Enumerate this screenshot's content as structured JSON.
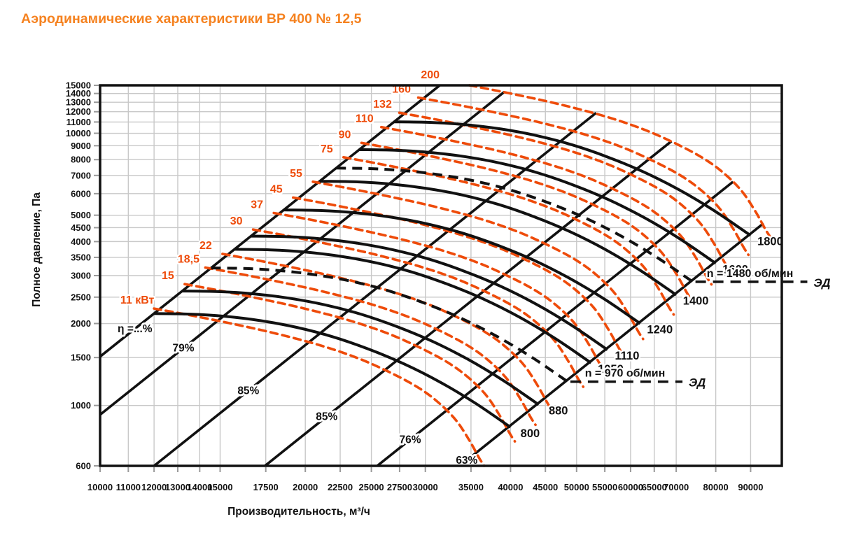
{
  "title": "Аэродинамические характеристики ВР 400 № 12,5",
  "title_color": "#F58220",
  "chart_data": {
    "type": "line",
    "xlabel": "Производительность, м³/ч",
    "ylabel": "Полное давление, Па",
    "x_scale": "log",
    "y_scale": "log",
    "x_range": [
      10000,
      100000
    ],
    "y_range": [
      600,
      15000
    ],
    "grid": true,
    "x_ticks": [
      10000,
      11000,
      12000,
      13000,
      14000,
      15000,
      17500,
      20000,
      22500,
      25000,
      27500,
      30000,
      35000,
      40000,
      45000,
      50000,
      55000,
      60000,
      65000,
      70000,
      80000,
      90000
    ],
    "y_ticks": [
      600,
      1000,
      1500,
      2000,
      2500,
      3000,
      3500,
      4000,
      4500,
      5000,
      6000,
      7000,
      8000,
      9000,
      10000,
      11000,
      12000,
      13000,
      14000,
      15000
    ],
    "colors": {
      "black_curves": "#111111",
      "power_curves_orange": "#EE4B0A",
      "grid": "#C8C8C8",
      "tick": "#9a9a9a",
      "text": "#111111"
    },
    "rpm_curves": {
      "comment_units": "об/мин; each curve scaled from master by fan laws Q~n, P~n^2",
      "master_ref_rpm": 1000,
      "master_q": [
        15000,
        16920,
        19080,
        21520,
        24280,
        27390,
        30890,
        34840,
        39300,
        44330,
        50000
      ],
      "master_p": [
        3400,
        3384,
        3320,
        3200,
        3026,
        2797,
        2522,
        2226,
        1912,
        1597,
        1300
      ],
      "values": [
        800,
        880,
        1050,
        1110,
        1240,
        1400,
        1600,
        1800
      ],
      "labels": [
        "800",
        "880",
        "1050",
        "1110",
        "1240",
        "1400",
        "1600",
        "1800"
      ]
    },
    "motor_curves": [
      {
        "rpm": 970,
        "label": "n = 970 об/мин",
        "ed_label": "ЭД",
        "ed_end_q": 71500
      },
      {
        "rpm": 1480,
        "label": "n = 1480 об/мин",
        "ed_label": "ЭД",
        "ed_end_q": 109000
      }
    ],
    "power_curves": {
      "comment_units": "кВт; constant-power curves, scaled from master by k=cbrt(N/11)",
      "master_ref_kw": 11,
      "master_q": [
        12000,
        13500,
        15500,
        18000,
        21000,
        24000,
        27000,
        29500,
        31500,
        33300,
        34800,
        36000,
        36600
      ],
      "master_p": [
        2270,
        2150,
        2005,
        1845,
        1665,
        1485,
        1300,
        1150,
        1015,
        880,
        745,
        640,
        600
      ],
      "values": [
        11,
        15,
        18.5,
        22,
        30,
        37,
        45,
        55,
        75,
        90,
        110,
        132,
        160,
        200
      ],
      "labels": [
        "11 кВт",
        "15",
        "18,5",
        "22",
        "30",
        "37",
        "45",
        "55",
        "75",
        "90",
        "110",
        "132",
        "160",
        "200"
      ]
    },
    "efficiency_lines": [
      {
        "label": "η =...%",
        "q_at_600": 6300,
        "label_q": 11250
      },
      {
        "label": "79%",
        "q_at_600": 8054,
        "label_q": 13250
      },
      {
        "label": "85%",
        "q_at_600": 12000,
        "label_q": 16500
      },
      {
        "label": "85%",
        "q_at_600": 17450,
        "label_q": 21500
      },
      {
        "label": "76%",
        "q_at_600": 25500,
        "label_q": 28500
      },
      {
        "label": "63%",
        "q_at_600": 33700,
        "label_q": 34500
      }
    ]
  }
}
